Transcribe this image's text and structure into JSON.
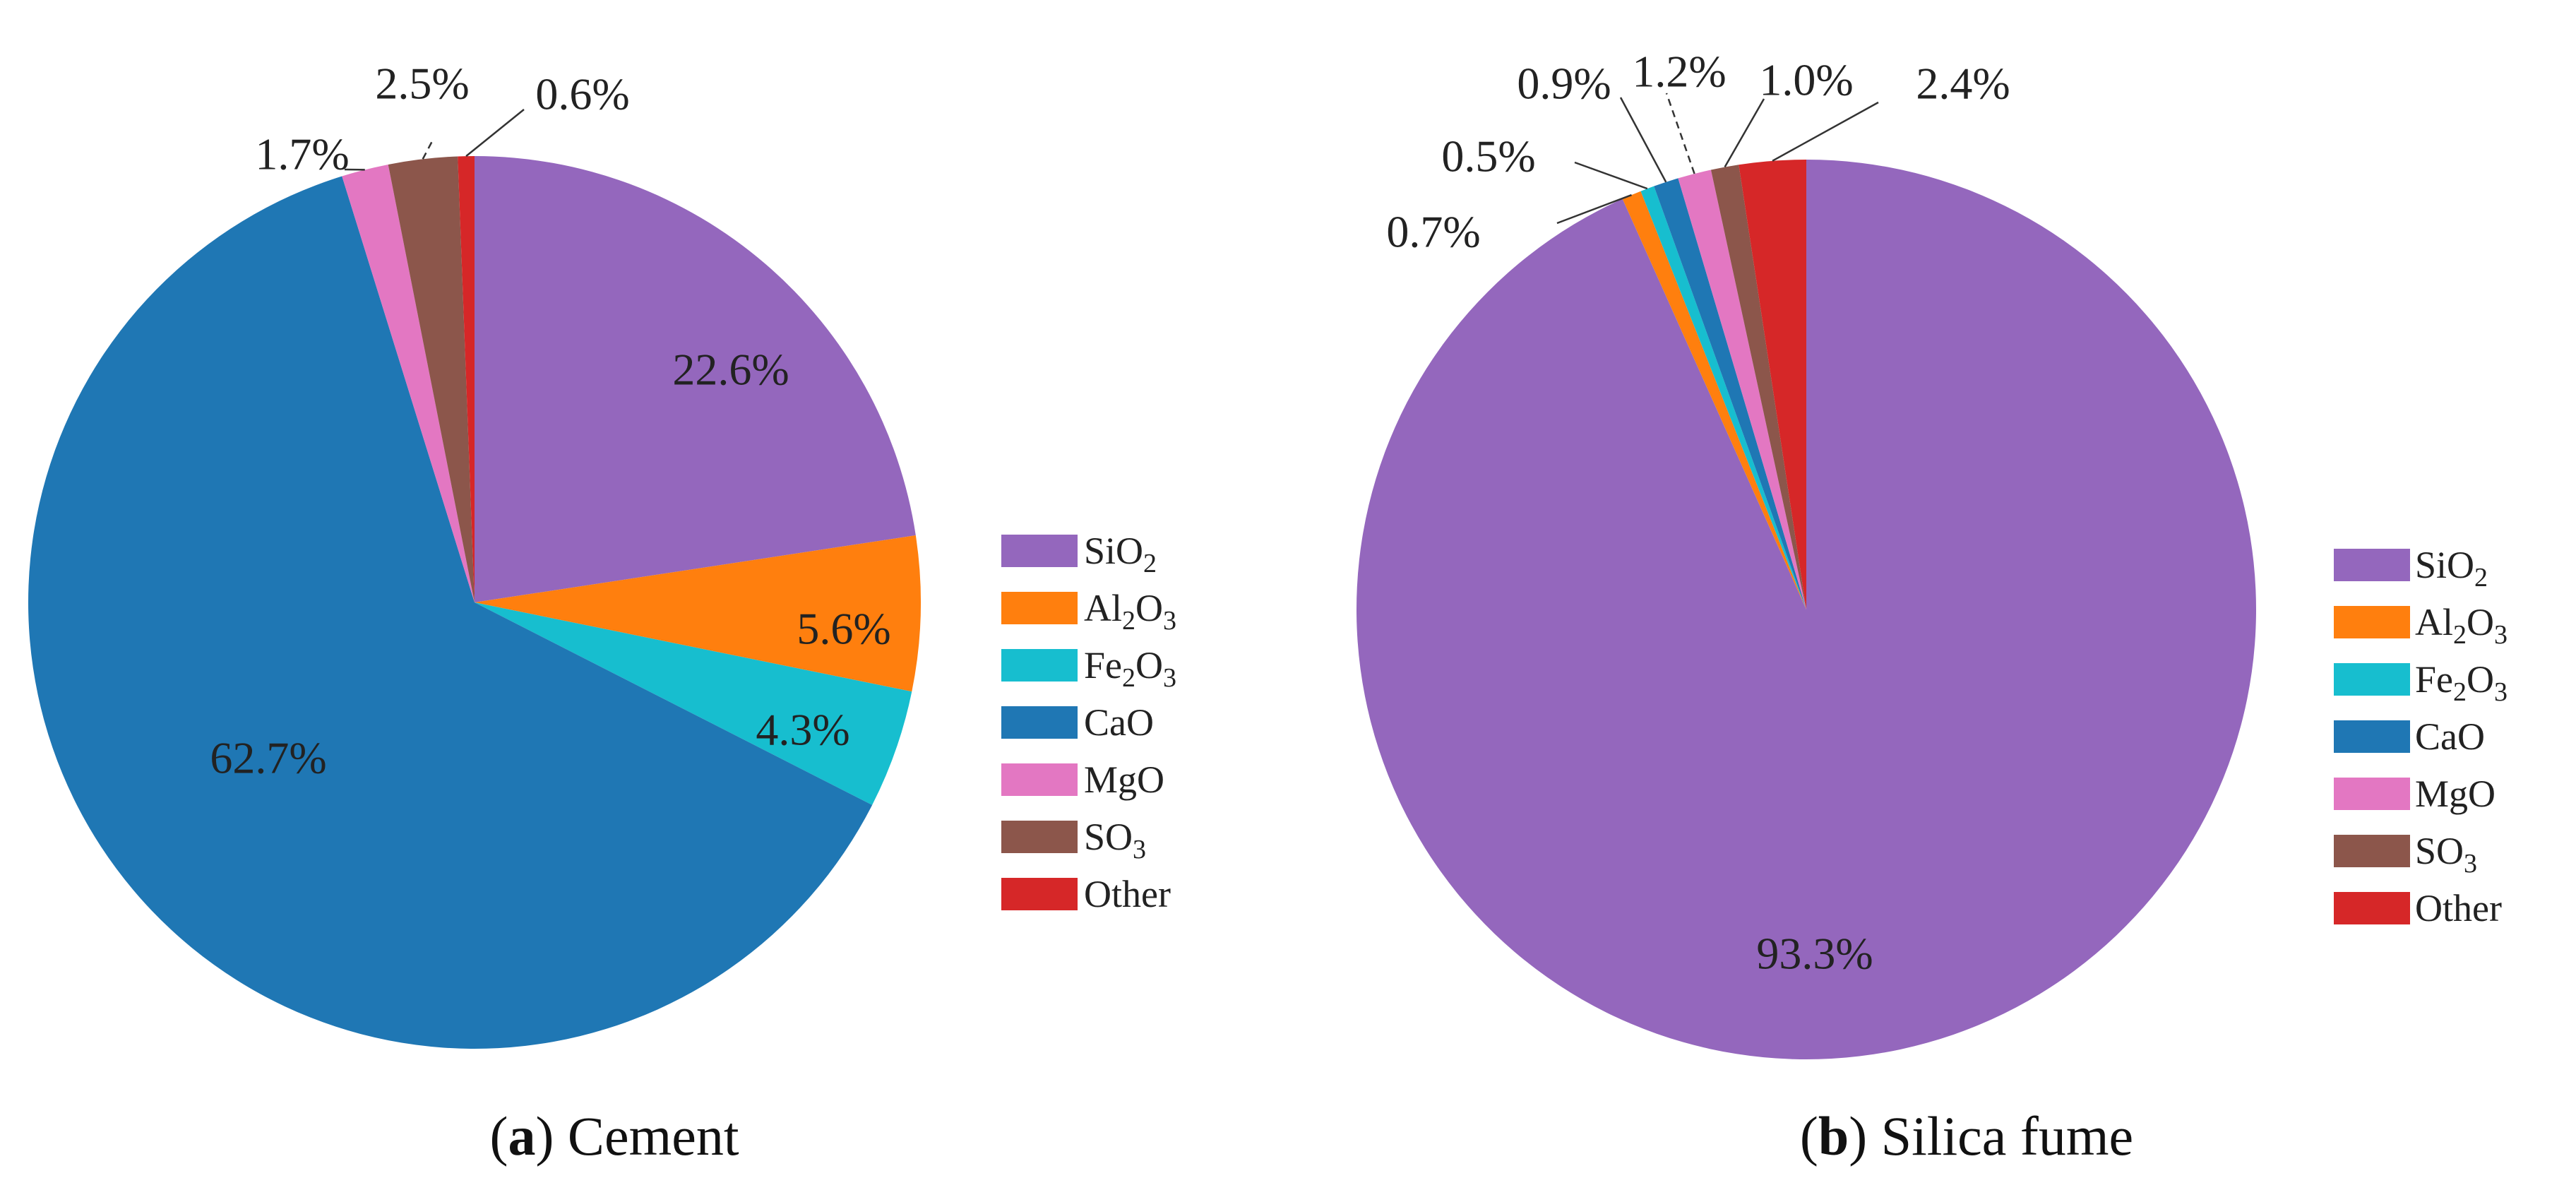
{
  "chart_data": [
    {
      "type": "pie",
      "title": "Cement",
      "caption": {
        "letter": "a",
        "name": "Cement"
      },
      "categories": [
        "SiO2",
        "Al2O3",
        "Fe2O3",
        "CaO",
        "MgO",
        "SO3",
        "Other"
      ],
      "values": [
        22.6,
        5.6,
        4.3,
        62.7,
        1.7,
        2.5,
        0.6
      ],
      "labels": [
        "22.6%",
        "5.6%",
        "4.3%",
        "62.7%",
        "1.7%",
        "2.5%",
        "0.6%"
      ],
      "start": "12 o'clock",
      "direction": "clockwise",
      "legend_position": "right"
    },
    {
      "type": "pie",
      "title": "Silica fume",
      "caption": {
        "letter": "b",
        "name": "Silica fume"
      },
      "categories": [
        "SiO2",
        "Al2O3",
        "Fe2O3",
        "CaO",
        "MgO",
        "SO3",
        "Other"
      ],
      "values": [
        93.3,
        0.7,
        0.5,
        0.9,
        1.2,
        1.0,
        2.4
      ],
      "labels": [
        "93.3%",
        "0.7%",
        "0.5%",
        "0.9%",
        "1.2%",
        "1.0%",
        "2.4%"
      ],
      "start": "12 o'clock",
      "direction": "clockwise",
      "legend_position": "right"
    }
  ],
  "legend": [
    {
      "base": "Si",
      "sub": "O",
      "idx": "2",
      "color": "#9467bd"
    },
    {
      "base": "Al",
      "sub": "2",
      "mid": "O",
      "idx": "3",
      "color": "#ff7f0e"
    },
    {
      "base": "Fe",
      "sub": "2",
      "mid": "O",
      "idx": "3",
      "color": "#17becf"
    },
    {
      "base": "CaO",
      "color": "#1f77b4"
    },
    {
      "base": "MgO",
      "color": "#e377c2"
    },
    {
      "base": "S",
      "sub": "O",
      "idx": "3",
      "color": "#8c564b"
    },
    {
      "base": "Other",
      "color": "#d62728"
    }
  ]
}
